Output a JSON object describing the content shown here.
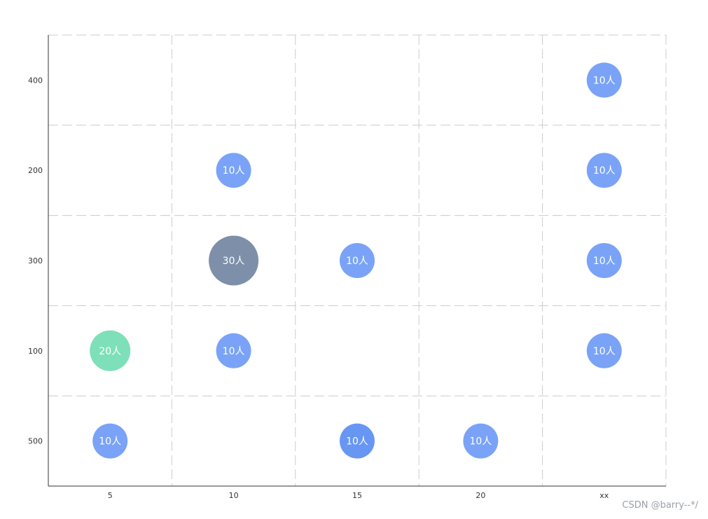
{
  "chart_data": {
    "type": "scatter",
    "title": "",
    "xlabel": "",
    "ylabel": "",
    "x_categories": [
      "5",
      "10",
      "15",
      "20",
      "xx"
    ],
    "y_categories": [
      "500",
      "100",
      "300",
      "200",
      "400"
    ],
    "grid": true,
    "grid_style": "dashed",
    "points": [
      {
        "x": "xx",
        "y": "400",
        "value": 10,
        "label": "10人",
        "color": "#7aa3f7"
      },
      {
        "x": "10",
        "y": "200",
        "value": 10,
        "label": "10人",
        "color": "#7aa3f7"
      },
      {
        "x": "xx",
        "y": "200",
        "value": 10,
        "label": "10人",
        "color": "#7aa3f7"
      },
      {
        "x": "10",
        "y": "300",
        "value": 30,
        "label": "30人",
        "color": "#7e8fa9"
      },
      {
        "x": "15",
        "y": "300",
        "value": 10,
        "label": "10人",
        "color": "#7aa3f7"
      },
      {
        "x": "xx",
        "y": "300",
        "value": 10,
        "label": "10人",
        "color": "#7aa3f7"
      },
      {
        "x": "5",
        "y": "100",
        "value": 20,
        "label": "20人",
        "color": "#7ee0b8"
      },
      {
        "x": "10",
        "y": "100",
        "value": 10,
        "label": "10人",
        "color": "#7aa3f7"
      },
      {
        "x": "xx",
        "y": "100",
        "value": 10,
        "label": "10人",
        "color": "#7aa3f7"
      },
      {
        "x": "5",
        "y": "500",
        "value": 10,
        "label": "10人",
        "color": "#7aa3f7"
      },
      {
        "x": "15",
        "y": "500",
        "value": 10,
        "label": "10人",
        "color": "#6797f3"
      },
      {
        "x": "20",
        "y": "500",
        "value": 10,
        "label": "10人",
        "color": "#7aa3f7"
      }
    ]
  },
  "colors": {
    "axis": "#333333",
    "grid": "#cccccc",
    "label": "#ffffff"
  },
  "watermark": "CSDN @barry--*/"
}
